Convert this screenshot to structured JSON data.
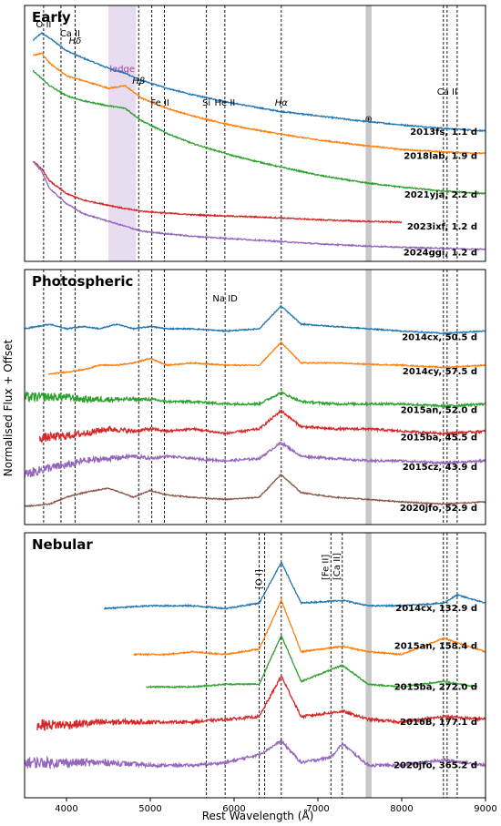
{
  "figure": {
    "ylabel": "Normalised Flux + Offset",
    "xlabel": "Rest Wavelength (Å)"
  },
  "chart_data": [
    {
      "type": "line",
      "panel": "Early",
      "title": "Early",
      "x_range": [
        3500,
        9000
      ],
      "line_markers": [
        {
          "label": "O II",
          "x": 3727
        },
        {
          "label": "Ca II",
          "x": 3934
        },
        {
          "label": "Hδ",
          "x": 4102
        },
        {
          "label": "Hβ",
          "x": 4861
        },
        {
          "label": "Fe II",
          "x": 5018
        },
        {
          "label": "Fe II",
          "x": 5169
        },
        {
          "label": "Si",
          "x": 5670
        },
        {
          "label": "He II",
          "x": 5890
        },
        {
          "label": "Hα",
          "x": 6563
        },
        {
          "label": "Ca II",
          "x": 8498
        },
        {
          "label": "Ca II",
          "x": 8542
        },
        {
          "label": "Ca II",
          "x": 8662
        }
      ],
      "shaded_regions": [
        {
          "label": "ledge",
          "range": [
            4500,
            4830
          ],
          "color": "#e8dcf0"
        },
        {
          "label": "⊕",
          "range": [
            7570,
            7640
          ],
          "color": "#c8c8c8"
        }
      ],
      "series": [
        {
          "name": "2013fs, 1.1 d",
          "color": "#1f77b4",
          "x_range": [
            3600,
            9000
          ],
          "shape": "steep blue continuum, weak Hα",
          "x": [
            3600,
            3700,
            3800,
            4000,
            4200,
            4500,
            4700,
            4900,
            5200,
            5500,
            6000,
            6500,
            7000,
            7500,
            8000,
            8500,
            9000
          ],
          "y": [
            9.8,
            9.95,
            9.85,
            9.6,
            9.45,
            9.25,
            9.15,
            9.0,
            8.85,
            8.72,
            8.55,
            8.4,
            8.3,
            8.2,
            8.12,
            8.05,
            8.0
          ]
        },
        {
          "name": "2018lab, 1.9 d",
          "color": "#ff7f0e",
          "x_range": [
            3600,
            9000
          ],
          "shape": "blue continuum, weak Hα",
          "x": [
            3600,
            3700,
            3800,
            4000,
            4200,
            4500,
            4700,
            4900,
            5200,
            5500,
            6000,
            6500,
            7000,
            7500,
            8000,
            8500,
            9000
          ],
          "y": [
            9.5,
            9.55,
            9.35,
            9.1,
            9.0,
            8.85,
            8.9,
            8.65,
            8.45,
            8.3,
            8.1,
            7.95,
            7.82,
            7.72,
            7.63,
            7.58,
            7.55
          ]
        },
        {
          "name": "2021yja, 2.2 d",
          "color": "#2ca02c",
          "x_range": [
            3600,
            9000
          ],
          "shape": "broad ledge bump near 4600 Å",
          "x": [
            3600,
            3700,
            3800,
            4000,
            4200,
            4500,
            4700,
            4900,
            5200,
            5500,
            6000,
            6500,
            7000,
            7500,
            8000,
            8500,
            9000
          ],
          "y": [
            9.2,
            9.05,
            8.9,
            8.7,
            8.6,
            8.5,
            8.45,
            8.2,
            7.95,
            7.75,
            7.5,
            7.3,
            7.12,
            6.98,
            6.88,
            6.8,
            6.75
          ]
        },
        {
          "name": "2023ixf, 1.2 d",
          "color": "#d62728",
          "x_range": [
            3600,
            8000
          ],
          "shape": "narrow flash-ionisation emission lines",
          "x": [
            3600,
            3700,
            3800,
            4000,
            4200,
            4500,
            4700,
            4900,
            5200,
            5500,
            6000,
            6500,
            7000,
            7500,
            8000
          ],
          "y": [
            7.4,
            7.25,
            7.0,
            6.75,
            6.62,
            6.52,
            6.45,
            6.4,
            6.36,
            6.33,
            6.3,
            6.27,
            6.23,
            6.2,
            6.18
          ]
        },
        {
          "name": "2024ggi, 1.2 d",
          "color": "#9467bd",
          "x_range": [
            3600,
            9000
          ],
          "shape": "narrow emission lines, decreasing continuum",
          "x": [
            3600,
            3700,
            3800,
            4000,
            4200,
            4500,
            4700,
            4900,
            5200,
            5500,
            6000,
            6500,
            7000,
            7500,
            8000,
            8500,
            9000
          ],
          "y": [
            7.4,
            7.2,
            6.85,
            6.55,
            6.35,
            6.2,
            6.1,
            6.0,
            5.95,
            5.9,
            5.85,
            5.8,
            5.75,
            5.71,
            5.68,
            5.66,
            5.64
          ]
        }
      ]
    },
    {
      "type": "line",
      "panel": "Photospheric",
      "title": "Photospheric",
      "x_range": [
        3500,
        9000
      ],
      "line_markers": [
        {
          "label": "",
          "x": 3727
        },
        {
          "label": "",
          "x": 3934
        },
        {
          "label": "",
          "x": 4102
        },
        {
          "label": "",
          "x": 4861
        },
        {
          "label": "",
          "x": 5018
        },
        {
          "label": "",
          "x": 5169
        },
        {
          "label": "",
          "x": 5670
        },
        {
          "label": "Na ID",
          "x": 5893
        },
        {
          "label": "",
          "x": 6563
        },
        {
          "label": "",
          "x": 8498
        },
        {
          "label": "",
          "x": 8542
        },
        {
          "label": "",
          "x": 8662
        }
      ],
      "shaded_regions": [
        {
          "label": "",
          "range": [
            7570,
            7640
          ],
          "color": "#c8c8c8"
        }
      ],
      "series": [
        {
          "name": "2014cx, 50.5 d",
          "color": "#1f77b4",
          "x_range": [
            3500,
            9000
          ],
          "shape": "P-Cygni Hα, metal absorption lines",
          "x": [
            3500,
            3800,
            4000,
            4200,
            4400,
            4600,
            4800,
            5000,
            5200,
            5500,
            5900,
            6300,
            6560,
            6800,
            7200,
            7600,
            8000,
            8500,
            9000
          ],
          "y": [
            8.5,
            8.6,
            8.5,
            8.55,
            8.5,
            8.6,
            8.5,
            8.55,
            8.5,
            8.5,
            8.45,
            8.5,
            9.0,
            8.6,
            8.55,
            8.5,
            8.45,
            8.4,
            8.45
          ]
        },
        {
          "name": "2014cy, 57.5 d",
          "color": "#ff7f0e",
          "x_range": [
            3780,
            9000
          ],
          "shape": "P-Cygni Hα and Ca II triplet",
          "x": [
            3780,
            4000,
            4200,
            4400,
            4600,
            4800,
            5000,
            5200,
            5500,
            5900,
            6300,
            6560,
            6800,
            7200,
            7600,
            8000,
            8500,
            9000
          ],
          "y": [
            7.5,
            7.55,
            7.6,
            7.7,
            7.7,
            7.75,
            7.85,
            7.7,
            7.75,
            7.7,
            7.7,
            8.2,
            7.75,
            7.75,
            7.72,
            7.7,
            7.65,
            7.7
          ]
        },
        {
          "name": "2015an, 52.0 d",
          "color": "#2ca02c",
          "x_range": [
            3500,
            9000
          ],
          "shape": "very noisy blue end",
          "x": [
            3500,
            4000,
            4200,
            4500,
            4800,
            5000,
            5200,
            5500,
            5900,
            6300,
            6560,
            6800,
            7200,
            7600,
            8000,
            8500,
            9000
          ],
          "y": [
            7.0,
            7.0,
            6.95,
            6.95,
            6.95,
            6.95,
            6.9,
            6.9,
            6.85,
            6.85,
            7.1,
            6.9,
            6.85,
            6.85,
            6.85,
            6.8,
            6.85
          ]
        },
        {
          "name": "2015ba, 45.5 d",
          "color": "#d62728",
          "x_range": [
            3680,
            9000
          ],
          "shape": "noisy, P-Cygni Hα",
          "x": [
            3680,
            4000,
            4200,
            4500,
            4800,
            5000,
            5200,
            5500,
            5900,
            6300,
            6560,
            6800,
            7200,
            7600,
            8000,
            8500,
            9000
          ],
          "y": [
            6.1,
            6.15,
            6.2,
            6.3,
            6.25,
            6.3,
            6.25,
            6.3,
            6.2,
            6.3,
            6.7,
            6.35,
            6.3,
            6.3,
            6.25,
            6.2,
            6.25
          ]
        },
        {
          "name": "2015cz, 43.9 d",
          "color": "#9467bd",
          "x_range": [
            3500,
            9000
          ],
          "shape": "noisy continuum with Hα",
          "x": [
            3500,
            3800,
            4000,
            4200,
            4500,
            4800,
            5000,
            5200,
            5500,
            5900,
            6300,
            6560,
            6800,
            7200,
            7600,
            8000,
            8500,
            9000
          ],
          "y": [
            5.3,
            5.45,
            5.5,
            5.6,
            5.65,
            5.7,
            5.65,
            5.7,
            5.65,
            5.6,
            5.65,
            6.0,
            5.7,
            5.65,
            5.6,
            5.6,
            5.55,
            5.6
          ]
        },
        {
          "name": "2020jfo, 52.9 d",
          "color": "#8c564b",
          "x_range": [
            3500,
            9000
          ],
          "shape": "strong metal absorptions, broad Hα",
          "x": [
            3500,
            3800,
            4000,
            4200,
            4500,
            4800,
            5000,
            5200,
            5500,
            5900,
            6300,
            6560,
            6800,
            7200,
            7600,
            8000,
            8500,
            9000
          ],
          "y": [
            4.6,
            4.65,
            4.8,
            4.9,
            5.0,
            4.8,
            4.95,
            4.85,
            4.8,
            4.75,
            4.8,
            5.3,
            4.9,
            4.8,
            4.75,
            4.7,
            4.65,
            4.7
          ]
        }
      ]
    },
    {
      "type": "line",
      "panel": "Nebular",
      "title": "Nebular",
      "x_range": [
        3500,
        9000
      ],
      "line_markers": [
        {
          "label": "",
          "x": 5670
        },
        {
          "label": "",
          "x": 5893
        },
        {
          "label": "",
          "x": 6300
        },
        {
          "label": "[O I]",
          "x": 6364
        },
        {
          "label": "",
          "x": 6563
        },
        {
          "label": "[Fe II]",
          "x": 7155
        },
        {
          "label": "[Ca II]",
          "x": 7291
        },
        {
          "label": "",
          "x": 8498
        },
        {
          "label": "",
          "x": 8542
        },
        {
          "label": "",
          "x": 8662
        }
      ],
      "shaded_regions": [
        {
          "label": "",
          "range": [
            7570,
            7640
          ],
          "color": "#c8c8c8"
        }
      ],
      "series": [
        {
          "name": "2014cx, 132.9 d",
          "color": "#1f77b4",
          "x_range": [
            4450,
            9000
          ],
          "shape": "strong Hα emission",
          "x": [
            4450,
            5000,
            5500,
            5900,
            6300,
            6563,
            6800,
            7300,
            7600,
            8000,
            8500,
            8662,
            9000
          ],
          "y": [
            4.1,
            4.15,
            4.15,
            4.1,
            4.2,
            4.95,
            4.2,
            4.25,
            4.15,
            4.15,
            4.2,
            4.35,
            4.2
          ]
        },
        {
          "name": "2015an, 158.4 d",
          "color": "#ff7f0e",
          "x_range": [
            4800,
            9000
          ],
          "shape": "strong Hα emission",
          "x": [
            4800,
            5200,
            5500,
            5900,
            6300,
            6563,
            6800,
            7300,
            7600,
            8000,
            8500,
            9000
          ],
          "y": [
            3.25,
            3.25,
            3.3,
            3.25,
            3.35,
            4.25,
            3.3,
            3.4,
            3.3,
            3.25,
            3.55,
            3.3
          ]
        },
        {
          "name": "2015ba, 272.0 d",
          "color": "#2ca02c",
          "x_range": [
            4950,
            8900
          ],
          "shape": "strong Hα and [Ca II]",
          "x": [
            4950,
            5500,
            5900,
            6300,
            6563,
            6800,
            7291,
            7600,
            8000,
            8500,
            8900
          ],
          "y": [
            2.65,
            2.65,
            2.7,
            2.7,
            3.6,
            2.75,
            3.05,
            2.7,
            2.65,
            2.75,
            2.65
          ]
        },
        {
          "name": "2016B, 177.1 d",
          "color": "#d62728",
          "x_range": [
            3650,
            9000
          ],
          "shape": "noisy blue end, strong Hα",
          "x": [
            3650,
            4000,
            4500,
            5000,
            5500,
            5900,
            6300,
            6563,
            6800,
            7291,
            7600,
            8000,
            8500,
            9000
          ],
          "y": [
            1.95,
            1.95,
            2.0,
            2.0,
            2.0,
            2.05,
            2.1,
            2.85,
            2.1,
            2.2,
            2.05,
            2.0,
            2.1,
            2.05
          ]
        },
        {
          "name": "2020jfo, 365.2 d",
          "color": "#9467bd",
          "x_range": [
            3500,
            9000
          ],
          "shape": "very noisy blue end, Hα, [O I], [Ca II]",
          "x": [
            3500,
            4000,
            4500,
            5000,
            5500,
            5900,
            6300,
            6563,
            6800,
            7155,
            7291,
            7600,
            8000,
            8500,
            9000
          ],
          "y": [
            1.25,
            1.25,
            1.25,
            1.2,
            1.2,
            1.25,
            1.4,
            1.65,
            1.25,
            1.35,
            1.6,
            1.2,
            1.2,
            1.3,
            1.2
          ]
        }
      ]
    }
  ],
  "xticks": [
    "4000",
    "5000",
    "6000",
    "7000",
    "8000",
    "9000"
  ]
}
